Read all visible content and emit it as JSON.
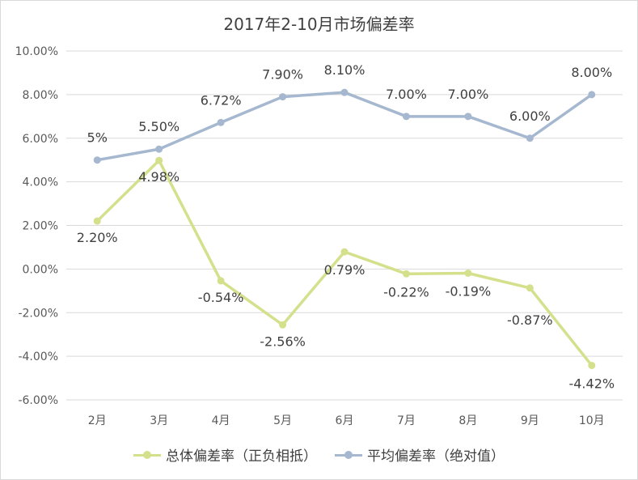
{
  "chart_data": {
    "type": "line",
    "title": "2017年2-10月市场偏差率",
    "categories": [
      "2月",
      "3月",
      "4月",
      "5月",
      "6月",
      "7月",
      "8月",
      "9月",
      "10月"
    ],
    "ylim": [
      -6,
      10
    ],
    "yticks": [
      "10.00%",
      "8.00%",
      "6.00%",
      "4.00%",
      "2.00%",
      "0.00%",
      "-2.00%",
      "-4.00%",
      "-6.00%"
    ],
    "grid": true,
    "legend_position": "bottom",
    "series": [
      {
        "name": "总体偏差率（正负相抵）",
        "color": "#d4e08b",
        "values": [
          2.2,
          4.98,
          -0.54,
          -2.56,
          0.79,
          -0.22,
          -0.19,
          -0.87,
          -4.42
        ],
        "labels": [
          "2.20%",
          "4.98%",
          "-0.54%",
          "-2.56%",
          "0.79%",
          "-0.22%",
          "-0.19%",
          "-0.87%",
          "-4.42%"
        ]
      },
      {
        "name": "平均偏差率（绝对值）",
        "color": "#a5b8cf",
        "values": [
          5.0,
          5.5,
          6.72,
          7.9,
          8.1,
          7.0,
          7.0,
          6.0,
          8.0
        ],
        "labels": [
          "5%",
          "5.50%",
          "6.72%",
          "7.90%",
          "8.10%",
          "7.00%",
          "7.00%",
          "6.00%",
          "8.00%"
        ]
      }
    ]
  }
}
